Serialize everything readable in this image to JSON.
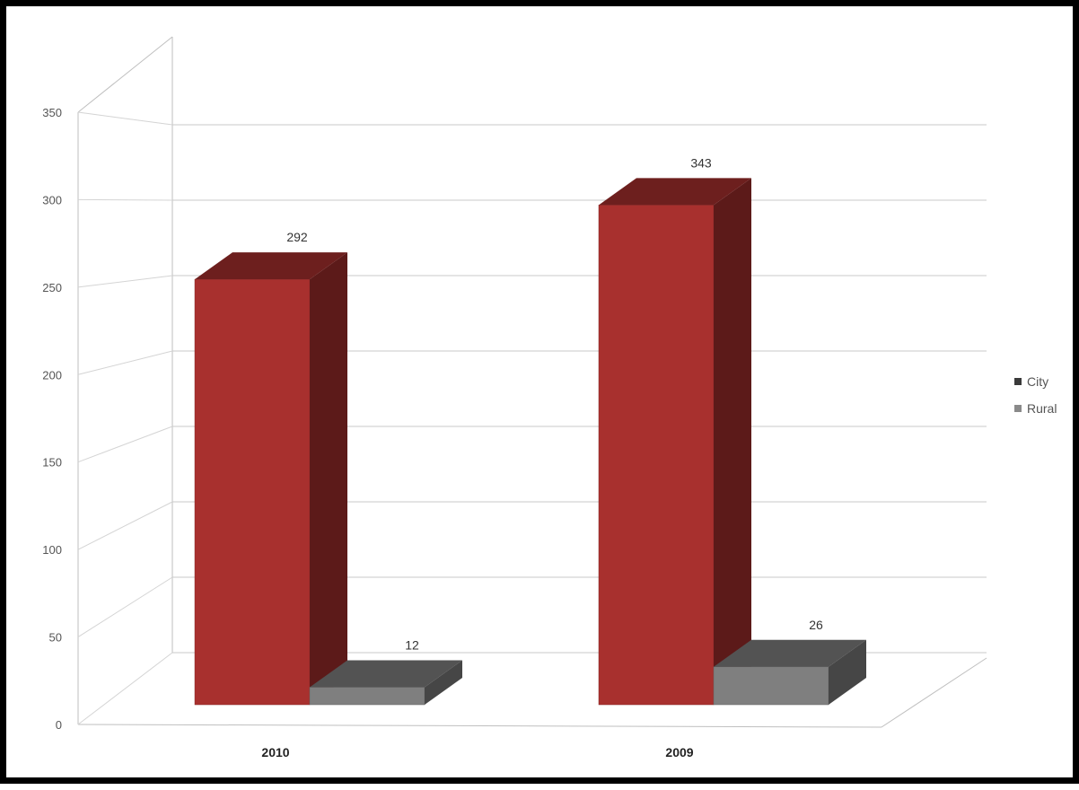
{
  "chart_data": {
    "type": "bar",
    "title": "",
    "xlabel": "",
    "ylabel": "",
    "categories": [
      "2010",
      "2009"
    ],
    "series": [
      {
        "name": "City",
        "values": [
          292,
          343
        ],
        "color": "#a8302e"
      },
      {
        "name": "Rural",
        "values": [
          12,
          26
        ],
        "color": "#7f7f7f"
      }
    ],
    "ylim": [
      0,
      350
    ],
    "yticks": [
      "0",
      "50",
      "100",
      "150",
      "200",
      "250",
      "300",
      "350"
    ],
    "data_labels": [
      "292",
      "12",
      "343",
      "26"
    ],
    "grid": true,
    "style": "3d-clustered-column",
    "legend_position": "right"
  }
}
